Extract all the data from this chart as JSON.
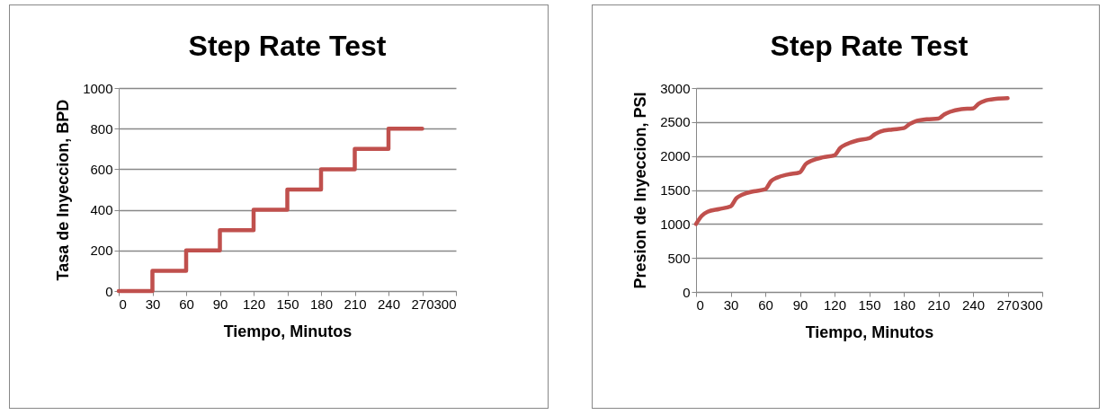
{
  "chart_data": [
    {
      "type": "step",
      "title": "Step Rate Test",
      "xlabel": "Tiempo, Minutos",
      "ylabel": "Tasa de Inyeccion, BPD",
      "x": [
        0,
        30,
        60,
        90,
        120,
        150,
        180,
        210,
        240,
        270
      ],
      "series": [
        {
          "color": "#c0504d",
          "values": [
            0,
            100,
            200,
            300,
            400,
            500,
            600,
            700,
            800,
            800
          ]
        }
      ],
      "xlim": [
        0,
        300
      ],
      "xticks": [
        0,
        30,
        60,
        90,
        120,
        150,
        180,
        210,
        240,
        270,
        300
      ],
      "ylim": [
        0,
        1000
      ],
      "yticks": [
        0,
        200,
        400,
        600,
        800,
        1000
      ],
      "grid": "y",
      "legend": false
    },
    {
      "type": "line",
      "title": "Step Rate Test",
      "xlabel": "Tiempo, Minutos",
      "ylabel": "Presion de Inyeccion, PSI",
      "x": [
        0,
        5,
        10,
        20,
        30,
        35,
        40,
        50,
        60,
        65,
        70,
        80,
        90,
        95,
        100,
        110,
        120,
        125,
        130,
        140,
        150,
        155,
        160,
        170,
        180,
        185,
        190,
        200,
        210,
        215,
        220,
        230,
        240,
        245,
        250,
        260,
        270
      ],
      "series": [
        {
          "color": "#c0504d",
          "values": [
            1000,
            1120,
            1180,
            1220,
            1260,
            1380,
            1430,
            1480,
            1510,
            1630,
            1680,
            1730,
            1760,
            1880,
            1930,
            1980,
            2010,
            2120,
            2170,
            2230,
            2260,
            2320,
            2360,
            2390,
            2410,
            2470,
            2510,
            2540,
            2550,
            2610,
            2650,
            2690,
            2700,
            2770,
            2810,
            2840,
            2850
          ]
        }
      ],
      "xlim": [
        0,
        300
      ],
      "xticks": [
        0,
        30,
        60,
        90,
        120,
        150,
        180,
        210,
        240,
        270,
        300
      ],
      "ylim": [
        0,
        3000
      ],
      "yticks": [
        0,
        500,
        1000,
        1500,
        2000,
        2500,
        3000
      ],
      "grid": "y",
      "legend": false
    }
  ]
}
